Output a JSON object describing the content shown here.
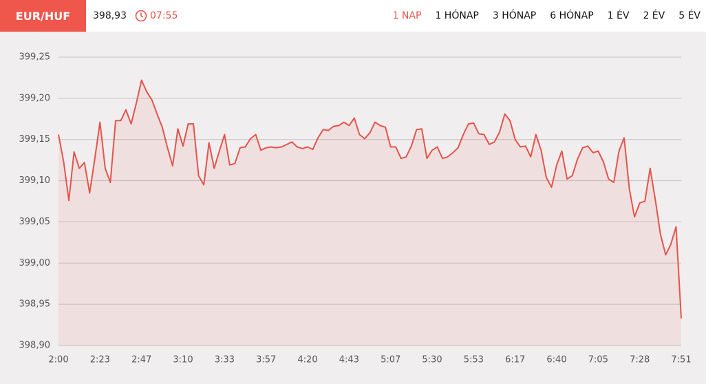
{
  "header": {
    "pair": "EUR/HUF",
    "price": "398,93",
    "time": "07:55",
    "tabs": [
      "1 NAP",
      "1 HÓNAP",
      "3 HÓNAP",
      "6 HÓNAP",
      "1 ÉV",
      "2 ÉV",
      "5 ÉV"
    ],
    "active_tab": 0
  },
  "chart_data": {
    "type": "area",
    "color": "#e5534b",
    "grid": true,
    "categories": [
      "2:00",
      null,
      null,
      null,
      null,
      null,
      null,
      null,
      "2:23",
      null,
      null,
      null,
      null,
      null,
      null,
      null,
      "2:47",
      null,
      null,
      null,
      null,
      null,
      null,
      null,
      "3:10",
      null,
      null,
      null,
      null,
      null,
      null,
      null,
      "3:33",
      null,
      null,
      null,
      null,
      null,
      null,
      null,
      "3:57",
      null,
      null,
      null,
      null,
      null,
      null,
      null,
      "4:20",
      null,
      null,
      null,
      null,
      null,
      null,
      null,
      "4:43",
      null,
      null,
      null,
      null,
      null,
      null,
      null,
      "5:07",
      null,
      null,
      null,
      null,
      null,
      null,
      null,
      "5:30",
      null,
      null,
      null,
      null,
      null,
      null,
      null,
      "5:53",
      null,
      null,
      null,
      null,
      null,
      null,
      null,
      "6:17",
      null,
      null,
      null,
      null,
      null,
      null,
      null,
      "6:40",
      null,
      null,
      null,
      null,
      null,
      null,
      null,
      "7:05",
      null,
      null,
      null,
      null,
      null,
      null,
      null,
      "7:28",
      null,
      null,
      null,
      null,
      null,
      null,
      null,
      "7:51"
    ],
    "values": [
      399.156,
      399.123,
      399.076,
      399.135,
      399.115,
      399.122,
      399.085,
      399.127,
      399.171,
      399.115,
      399.098,
      399.173,
      399.173,
      399.186,
      399.169,
      399.194,
      399.222,
      399.208,
      399.198,
      399.181,
      399.165,
      399.14,
      399.118,
      399.163,
      399.142,
      399.169,
      399.169,
      399.106,
      399.095,
      399.146,
      399.115,
      399.136,
      399.156,
      399.119,
      399.121,
      399.14,
      399.141,
      399.151,
      399.156,
      399.137,
      399.14,
      399.141,
      399.14,
      399.141,
      399.144,
      399.147,
      399.141,
      399.139,
      399.141,
      399.138,
      399.152,
      399.162,
      399.161,
      399.166,
      399.167,
      399.171,
      399.167,
      399.176,
      399.156,
      399.151,
      399.158,
      399.171,
      399.167,
      399.165,
      399.141,
      399.141,
      399.127,
      399.129,
      399.142,
      399.162,
      399.163,
      399.127,
      399.137,
      399.141,
      399.127,
      399.129,
      399.134,
      399.14,
      399.156,
      399.169,
      399.17,
      399.157,
      399.156,
      399.144,
      399.147,
      399.159,
      399.181,
      399.173,
      399.15,
      399.141,
      399.142,
      399.129,
      399.156,
      399.137,
      399.104,
      399.092,
      399.119,
      399.136,
      399.102,
      399.106,
      399.126,
      399.14,
      399.142,
      399.134,
      399.136,
      399.123,
      399.102,
      399.098,
      399.136,
      399.152,
      399.09,
      399.056,
      399.073,
      399.075,
      399.115,
      399.077,
      399.035,
      399.01,
      399.023,
      399.044,
      398.933
    ],
    "ylim": [
      398.9,
      399.25
    ],
    "yticks": [
      {
        "value": 398.9,
        "label": "398,90"
      },
      {
        "value": 398.95,
        "label": "398,95"
      },
      {
        "value": 399.0,
        "label": "399,00"
      },
      {
        "value": 399.05,
        "label": "399,05"
      },
      {
        "value": 399.1,
        "label": "399,10"
      },
      {
        "value": 399.15,
        "label": "399,15"
      },
      {
        "value": 399.2,
        "label": "399,20"
      },
      {
        "value": 399.25,
        "label": "399,25"
      }
    ]
  }
}
